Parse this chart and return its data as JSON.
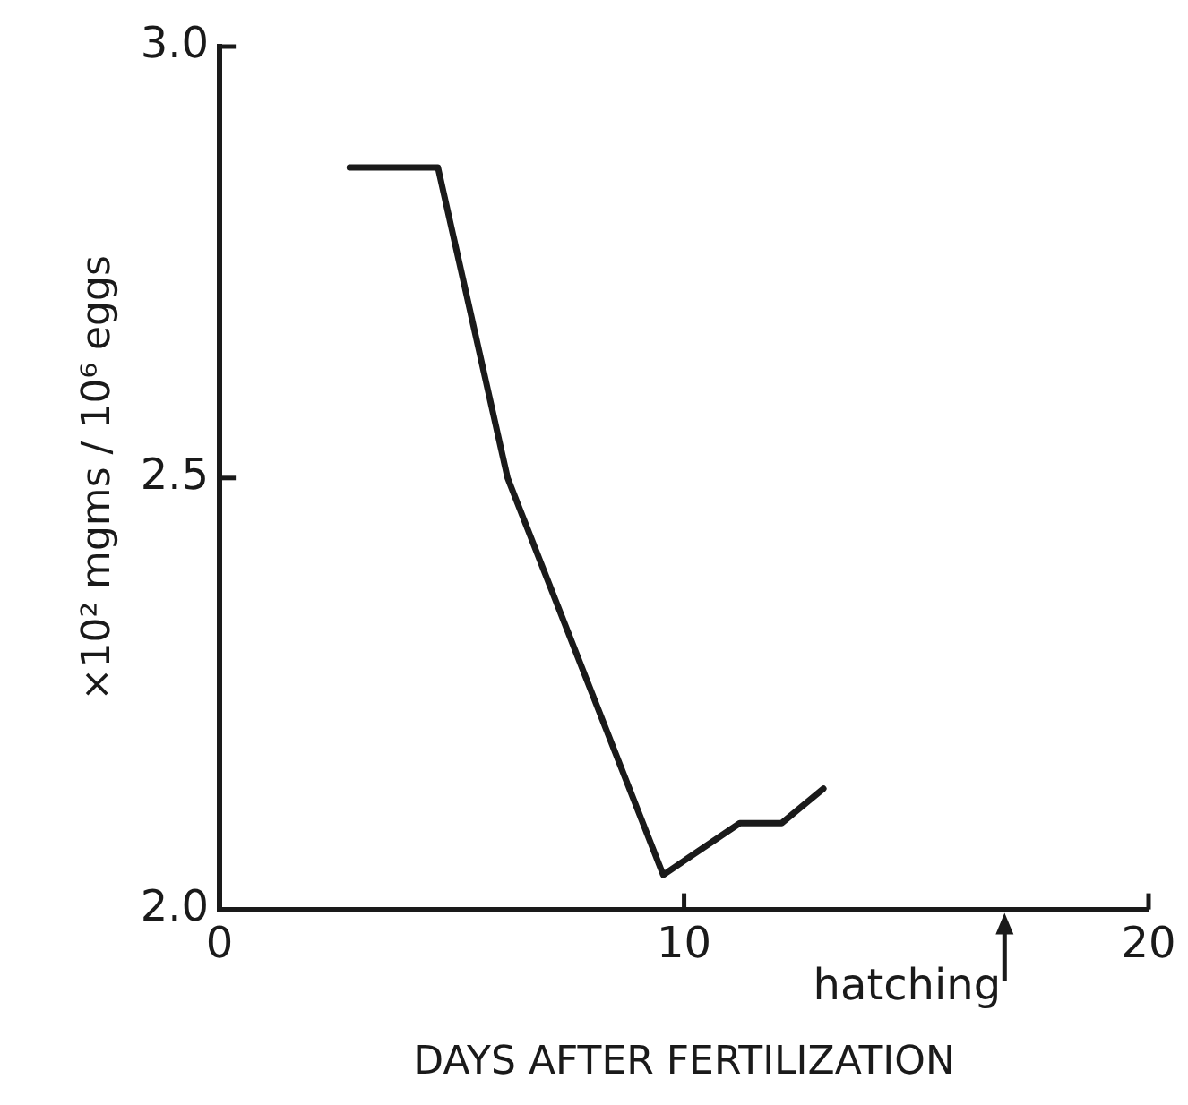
{
  "chart_data": {
    "type": "line",
    "xlabel": "DAYS AFTER FERTILIZATION",
    "ylabel": "×10² mgms / 10⁶ eggs",
    "x": [
      2.8,
      4.7,
      6.2,
      9.55,
      11.2,
      12.1,
      13.0
    ],
    "series": [
      {
        "color": "#1a1a1a",
        "values": [
          2.86,
          2.86,
          2.5,
          2.04,
          2.1,
          2.1,
          2.14
        ]
      }
    ],
    "xlim": [
      0,
      20
    ],
    "xticks": [
      0,
      10,
      20
    ],
    "ylim": [
      2,
      3
    ],
    "yticks": [
      {
        "value": 2,
        "label": "2.0"
      },
      {
        "value": 2.5,
        "label": "2.5"
      },
      {
        "value": 3,
        "label": "3.0"
      }
    ],
    "annotations": [
      "hatching"
    ],
    "grid": false,
    "legend": false,
    "marker": "none",
    "line_style": "solid"
  }
}
